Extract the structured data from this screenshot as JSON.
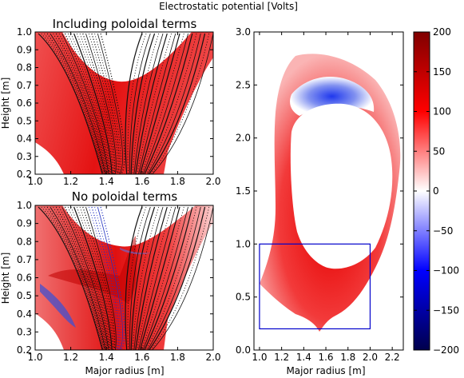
{
  "figure_title": "Electrostatic potential [Volts]",
  "chart_data": [
    {
      "id": "top_left",
      "type": "heatmap",
      "title": "Including poloidal terms",
      "xlabel": "",
      "ylabel": "Height [m]",
      "xlim": [
        1.0,
        2.0
      ],
      "ylim": [
        0.2,
        1.0
      ],
      "xticks": [
        "1.0",
        "1.2",
        "1.4",
        "1.6",
        "1.8",
        "2.0"
      ],
      "yticks": [
        "0.2",
        "0.3",
        "0.4",
        "0.5",
        "0.6",
        "0.7",
        "0.8",
        "0.9",
        "1.0"
      ],
      "field_lines": true
    },
    {
      "id": "bottom_left",
      "type": "heatmap",
      "title": "No poloidal terms",
      "xlabel": "Major radius [m]",
      "ylabel": "Height [m]",
      "xlim": [
        1.0,
        2.0
      ],
      "ylim": [
        0.2,
        1.0
      ],
      "xticks": [
        "1.0",
        "1.2",
        "1.4",
        "1.6",
        "1.8",
        "2.0"
      ],
      "yticks": [
        "0.2",
        "0.3",
        "0.4",
        "0.5",
        "0.6",
        "0.7",
        "0.8",
        "0.9",
        "1.0"
      ],
      "field_lines": true
    },
    {
      "id": "right",
      "type": "heatmap",
      "title": "",
      "xlabel": "Major radius [m]",
      "ylabel": "",
      "xlim": [
        0.95,
        2.3
      ],
      "ylim": [
        0.0,
        3.0
      ],
      "xticks": [
        "1.0",
        "1.2",
        "1.4",
        "1.6",
        "1.8",
        "2.0",
        "2.2"
      ],
      "yticks": [
        "0.0",
        "0.5",
        "1.0",
        "1.5",
        "2.0",
        "2.5",
        "3.0"
      ],
      "inset_box": {
        "x": [
          1.0,
          2.0
        ],
        "y": [
          0.2,
          1.0
        ],
        "color": "#0000cc"
      }
    }
  ],
  "colorbar": {
    "vmin": -200,
    "vmax": 200,
    "cmap": "seismic",
    "ticks": [
      "200",
      "150",
      "100",
      "50",
      "0",
      "−50",
      "−100",
      "−150",
      "−200"
    ]
  }
}
